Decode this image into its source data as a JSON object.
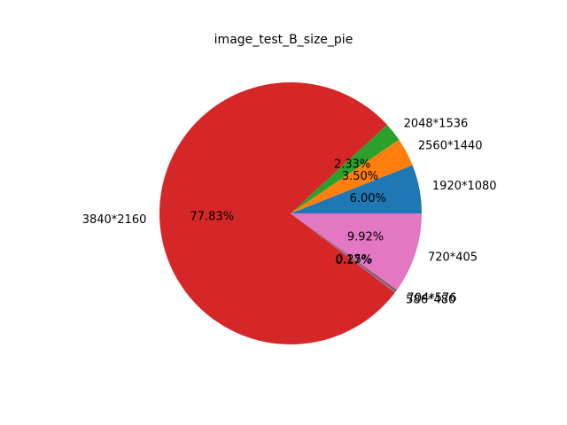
{
  "chart_data": {
    "type": "pie",
    "title": "image_test_B_size_pie",
    "categories": [
      "1920*1080",
      "2560*1440",
      "2048*1536",
      "3840*2160",
      "586*480",
      "704*576",
      "720*405"
    ],
    "values": [
      6.0,
      3.5,
      2.33,
      77.83,
      0.17,
      0.25,
      9.92
    ],
    "percent_labels": [
      "6.00%",
      "3.50%",
      "2.33%",
      "77.83%",
      "0.17%",
      "0.25%",
      "9.92%"
    ],
    "colors": [
      "#1f77b4",
      "#ff7f0e",
      "#2ca02c",
      "#d62728",
      "#9467bd",
      "#8c564b",
      "#e377c2"
    ],
    "start_angle_deg": 0,
    "direction": "counterclockwise",
    "legend": "none"
  }
}
